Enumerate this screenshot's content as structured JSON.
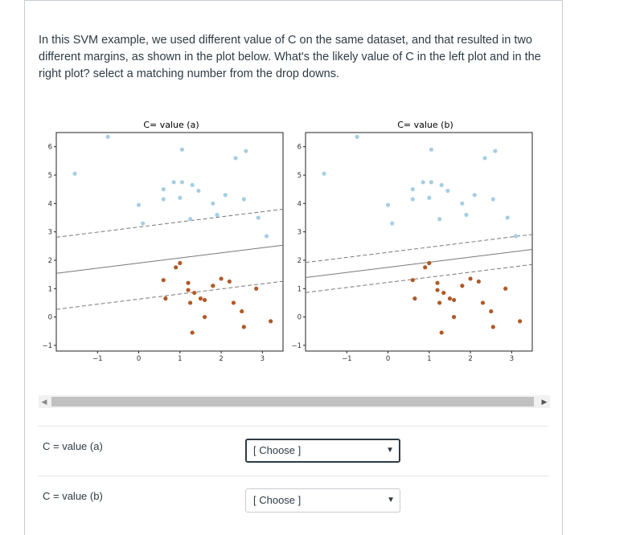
{
  "question": {
    "line1": "In this SVM example, we used different value of C on the same dataset, and that resulted in two",
    "line2": "different margins, as shown in the plot below. What's the likely value of C in the left plot and in the",
    "line3": "right plot? select a matching number from the drop downs."
  },
  "plots": {
    "left_title": "C= value (a)",
    "right_title": "C= value (b)",
    "x_ticks": [
      "−1",
      "0",
      "1",
      "2",
      "3"
    ],
    "y_ticks": [
      "−1",
      "0",
      "1",
      "2",
      "3",
      "4",
      "5",
      "6"
    ]
  },
  "chart_data": [
    {
      "type": "scatter",
      "title": "C= value (a)",
      "xlim": [
        -2.0,
        3.5
      ],
      "ylim": [
        -1.2,
        6.5
      ],
      "series": [
        {
          "color": "#a6cee3",
          "points": [
            [
              -1.55,
              5.05
            ],
            [
              -0.75,
              6.35
            ],
            [
              0.0,
              3.95
            ],
            [
              0.1,
              3.3
            ],
            [
              0.6,
              4.15
            ],
            [
              0.6,
              4.5
            ],
            [
              0.85,
              4.75
            ],
            [
              1.0,
              4.2
            ],
            [
              1.05,
              5.9
            ],
            [
              1.05,
              4.75
            ],
            [
              1.3,
              4.65
            ],
            [
              1.25,
              3.45
            ],
            [
              1.45,
              4.45
            ],
            [
              1.8,
              4.0
            ],
            [
              2.1,
              4.3
            ],
            [
              1.9,
              3.6
            ],
            [
              2.35,
              5.6
            ],
            [
              2.55,
              4.15
            ],
            [
              2.6,
              5.85
            ],
            [
              2.9,
              3.5
            ],
            [
              3.1,
              2.85
            ]
          ]
        },
        {
          "color": "#b15928",
          "points": [
            [
              0.6,
              1.3
            ],
            [
              0.65,
              0.65
            ],
            [
              0.9,
              1.75
            ],
            [
              1.0,
              1.9
            ],
            [
              1.2,
              1.2
            ],
            [
              1.2,
              0.95
            ],
            [
              1.25,
              0.5
            ],
            [
              1.3,
              -0.55
            ],
            [
              1.35,
              0.85
            ],
            [
              1.5,
              0.65
            ],
            [
              1.6,
              0.6
            ],
            [
              1.6,
              0.0
            ],
            [
              1.8,
              1.1
            ],
            [
              2.0,
              1.35
            ],
            [
              2.2,
              1.25
            ],
            [
              2.3,
              0.5
            ],
            [
              2.5,
              0.2
            ],
            [
              2.55,
              -0.35
            ],
            [
              2.85,
              1.0
            ],
            [
              3.2,
              -0.15
            ]
          ]
        }
      ],
      "boundary": {
        "slope": 0.18,
        "intercept": 1.9,
        "margin": 1.27
      }
    },
    {
      "type": "scatter",
      "title": "C= value (b)",
      "xlim": [
        -2.0,
        3.5
      ],
      "ylim": [
        -1.2,
        6.5
      ],
      "series": [
        {
          "color": "#a6cee3",
          "points": [
            [
              -1.55,
              5.05
            ],
            [
              -0.75,
              6.35
            ],
            [
              0.0,
              3.95
            ],
            [
              0.1,
              3.3
            ],
            [
              0.6,
              4.15
            ],
            [
              0.6,
              4.5
            ],
            [
              0.85,
              4.75
            ],
            [
              1.0,
              4.2
            ],
            [
              1.05,
              5.9
            ],
            [
              1.05,
              4.75
            ],
            [
              1.3,
              4.65
            ],
            [
              1.25,
              3.45
            ],
            [
              1.45,
              4.45
            ],
            [
              1.8,
              4.0
            ],
            [
              2.1,
              4.3
            ],
            [
              1.9,
              3.6
            ],
            [
              2.35,
              5.6
            ],
            [
              2.55,
              4.15
            ],
            [
              2.6,
              5.85
            ],
            [
              2.9,
              3.5
            ],
            [
              3.1,
              2.85
            ]
          ]
        },
        {
          "color": "#b15928",
          "points": [
            [
              0.6,
              1.3
            ],
            [
              0.65,
              0.65
            ],
            [
              0.9,
              1.75
            ],
            [
              1.0,
              1.9
            ],
            [
              1.2,
              1.2
            ],
            [
              1.2,
              0.95
            ],
            [
              1.25,
              0.5
            ],
            [
              1.3,
              -0.55
            ],
            [
              1.35,
              0.85
            ],
            [
              1.5,
              0.65
            ],
            [
              1.6,
              0.6
            ],
            [
              1.6,
              0.0
            ],
            [
              1.8,
              1.1
            ],
            [
              2.0,
              1.35
            ],
            [
              2.2,
              1.25
            ],
            [
              2.3,
              0.5
            ],
            [
              2.5,
              0.2
            ],
            [
              2.55,
              -0.35
            ],
            [
              2.85,
              1.0
            ],
            [
              3.2,
              -0.15
            ]
          ]
        }
      ],
      "boundary": {
        "slope": 0.18,
        "intercept": 1.75,
        "margin": 0.53
      }
    }
  ],
  "answers": {
    "row_a_label": "C = value (a)",
    "row_b_label": "C = value (b)",
    "select_a_value": "[ Choose ]",
    "select_b_value": "[ Choose ]"
  }
}
